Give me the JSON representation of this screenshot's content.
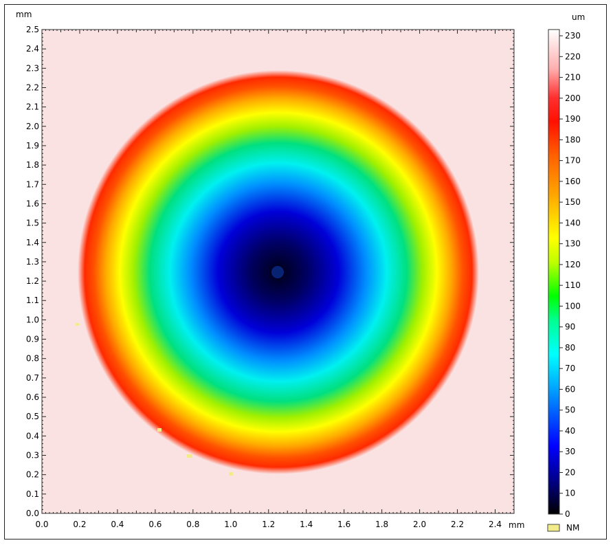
{
  "chart_data": {
    "type": "heatmap",
    "title": "",
    "x_unit": "mm",
    "y_unit": "mm",
    "xlim": [
      0.0,
      2.5
    ],
    "ylim": [
      0.0,
      2.5
    ],
    "x_ticks": [
      "0.0",
      "0.2",
      "0.4",
      "0.6",
      "0.8",
      "1.0",
      "1.2",
      "1.4",
      "1.6",
      "1.8",
      "2.0",
      "2.2",
      "2.4"
    ],
    "y_ticks": [
      "0.0",
      "0.1",
      "0.2",
      "0.3",
      "0.4",
      "0.5",
      "0.6",
      "0.7",
      "0.8",
      "0.9",
      "1.0",
      "1.1",
      "1.2",
      "1.3",
      "1.4",
      "1.5",
      "1.6",
      "1.7",
      "1.8",
      "1.9",
      "2.0",
      "2.1",
      "2.2",
      "2.3",
      "2.4",
      "2.5"
    ],
    "surface": {
      "shape": "concave circular crater",
      "center_x": 1.25,
      "center_y": 1.25,
      "rim_radius_mm": 1.05,
      "min_depth": 0,
      "rim_height": 185,
      "background_height": 220
    },
    "colorbar": {
      "unit": "um",
      "min": 0,
      "max": 233,
      "ticks": [
        "0",
        "10",
        "20",
        "30",
        "40",
        "50",
        "60",
        "70",
        "80",
        "90",
        "100",
        "110",
        "120",
        "130",
        "140",
        "150",
        "160",
        "170",
        "180",
        "190",
        "200",
        "210",
        "220",
        "230"
      ],
      "colors": [
        "#000000",
        "#00008a",
        "#0000ff",
        "#00ffff",
        "#00ff00",
        "#ffff00",
        "#ffa500",
        "#ff4500",
        "#ff0000",
        "#ffffff"
      ]
    },
    "legend": {
      "label": "NM",
      "color": "#f2eb8a"
    }
  }
}
